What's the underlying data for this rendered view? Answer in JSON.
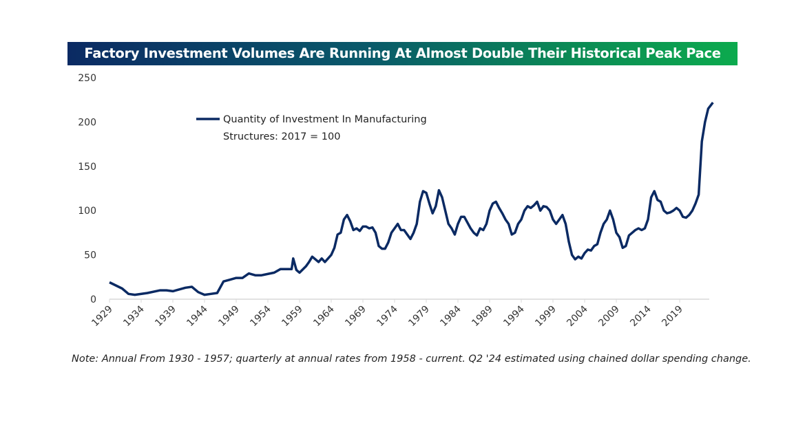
{
  "title": "Factory Investment Volumes Are Running At Almost Double Their Historical Peak Pace",
  "note": "Note: Annual From 1930 - 1957; quarterly at annual rates from 1958 - current. Q2 '24 estimated using chained dollar spending change.",
  "colors": {
    "line": "#0b2a63",
    "axis": "#d9d9d9",
    "title_start": "#0b2a63",
    "title_end": "#0caa4e"
  },
  "chart_data": {
    "type": "line",
    "title": "Factory Investment Volumes Are Running At Almost Double Their Historical Peak Pace",
    "xlabel": "",
    "ylabel": "",
    "ylim": [
      0,
      250
    ],
    "xlim": [
      1929,
      2024.5
    ],
    "yticks": [
      "0",
      "50",
      "100",
      "150",
      "200",
      "250"
    ],
    "xticks": [
      "1929",
      "1934",
      "1939",
      "1944",
      "1949",
      "1954",
      "1959",
      "1964",
      "1969",
      "1974",
      "1979",
      "1984",
      "1989",
      "1994",
      "1999",
      "2004",
      "2009",
      "2014",
      "2019"
    ],
    "legend": {
      "placement": "top-left",
      "line1": "Quantity of Investment In Manufacturing",
      "line2": "Structures: 2017 = 100"
    },
    "series": [
      {
        "name": "Quantity of Investment In Manufacturing Structures: 2017 = 100",
        "x": [
          1929,
          1931,
          1932,
          1933,
          1935,
          1937,
          1938,
          1939,
          1941,
          1942,
          1943,
          1944,
          1945,
          1946,
          1947,
          1948,
          1949,
          1950,
          1951,
          1952,
          1953,
          1955,
          1956,
          1957,
          1957.75,
          1958,
          1958.5,
          1959,
          1960,
          1960.5,
          1961,
          1962,
          1962.5,
          1963,
          1963.5,
          1964,
          1964.5,
          1965,
          1965.5,
          1966,
          1966.5,
          1967,
          1967.5,
          1968,
          1968.5,
          1969,
          1969.5,
          1970,
          1970.5,
          1971,
          1971.5,
          1972,
          1972.5,
          1973,
          1973.5,
          1974,
          1974.5,
          1975,
          1975.5,
          1976,
          1976.5,
          1977,
          1977.5,
          1978,
          1978.5,
          1979,
          1979.5,
          1980,
          1980.5,
          1981,
          1981.5,
          1982,
          1982.5,
          1983,
          1983.5,
          1984,
          1984.5,
          1985,
          1986,
          1986.5,
          1987,
          1987.5,
          1988,
          1988.5,
          1989,
          1989.5,
          1990,
          1990.5,
          1991,
          1991.5,
          1992,
          1992.5,
          1993,
          1993.5,
          1994,
          1994.5,
          1995,
          1995.5,
          1996,
          1996.5,
          1997,
          1997.5,
          1998,
          1998.5,
          1999,
          1999.5,
          2000,
          2000.5,
          2001,
          2001.5,
          2002,
          2002.5,
          2003,
          2003.5,
          2004,
          2004.5,
          2005,
          2005.5,
          2006,
          2006.5,
          2007,
          2007.5,
          2008,
          2008.5,
          2009,
          2009.5,
          2010,
          2010.5,
          2011,
          2011.5,
          2012,
          2012.5,
          2013,
          2013.5,
          2014,
          2014.5,
          2015,
          2015.5,
          2016,
          2016.5,
          2017,
          2017.5,
          2018,
          2018.5,
          2019,
          2019.5,
          2020,
          2020.5,
          2021,
          2021.5,
          2022,
          2022.5,
          2023,
          2023.5,
          2024.25
        ],
        "values": [
          19,
          12,
          6,
          5,
          7,
          10,
          10,
          9,
          13,
          14,
          8,
          5,
          6,
          7,
          20,
          22,
          24,
          24,
          29,
          27,
          27,
          30,
          34,
          34,
          34,
          46,
          33,
          30,
          37,
          42,
          48,
          42,
          46,
          42,
          46,
          50,
          58,
          73,
          75,
          90,
          95,
          88,
          78,
          80,
          77,
          82,
          82,
          80,
          81,
          75,
          60,
          57,
          57,
          64,
          75,
          80,
          85,
          78,
          78,
          73,
          68,
          75,
          85,
          110,
          122,
          120,
          108,
          97,
          105,
          123,
          115,
          100,
          85,
          80,
          73,
          85,
          93,
          93,
          80,
          75,
          72,
          80,
          78,
          85,
          100,
          108,
          110,
          103,
          97,
          90,
          85,
          73,
          75,
          85,
          90,
          100,
          105,
          103,
          106,
          110,
          100,
          105,
          104,
          100,
          90,
          85,
          90,
          95,
          85,
          65,
          50,
          45,
          48,
          46,
          52,
          56,
          55,
          60,
          62,
          75,
          85,
          90,
          100,
          90,
          75,
          70,
          58,
          60,
          72,
          75,
          78,
          80,
          78,
          80,
          90,
          115,
          122,
          112,
          110,
          100,
          97,
          98,
          100,
          103,
          100,
          93,
          92,
          95,
          100,
          108,
          118,
          178,
          200,
          215,
          222
        ]
      }
    ]
  }
}
